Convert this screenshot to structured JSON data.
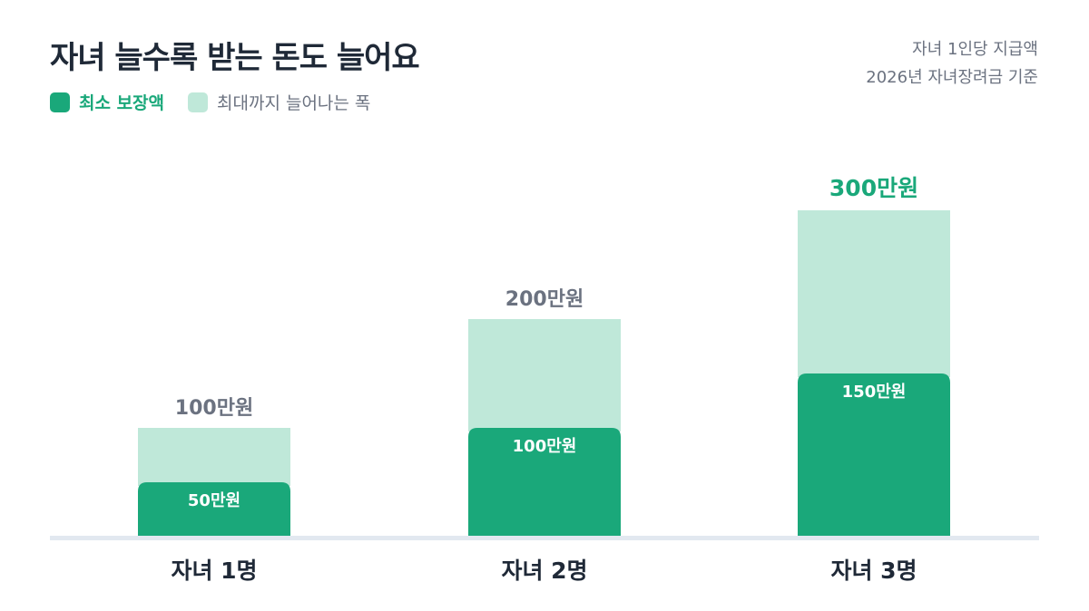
{
  "header": {
    "title": "자녀 늘수록 받는 돈도 늘어요",
    "note_line1": "자녀 1인당 지급액",
    "note_line2": "2026년 자녀장려금 기준"
  },
  "colors": {
    "min": "#1aa87a",
    "range": "#bfe8d9",
    "total_label": "#6b7280",
    "total_label_highlight": "#1aa87a",
    "axis": "#e2e8f0",
    "category_label": "#1f2937"
  },
  "chart_data": {
    "type": "bar",
    "stacked": true,
    "categories": [
      "자녀 1명",
      "자녀 2명",
      "자녀 3명"
    ],
    "series": [
      {
        "name": "최소 보장액",
        "values": [
          50,
          100,
          150
        ],
        "labels": [
          "50만원",
          "100만원",
          "150만원"
        ]
      },
      {
        "name": "최대까지 늘어나는 폭",
        "values": [
          50,
          100,
          150
        ]
      }
    ],
    "totals": [
      100,
      200,
      300
    ],
    "total_labels": [
      "100만원",
      "200만원",
      "300만원"
    ],
    "highlight_index": 2,
    "ylim": [
      0,
      300
    ],
    "grid": false,
    "legend_position": "top-left"
  }
}
